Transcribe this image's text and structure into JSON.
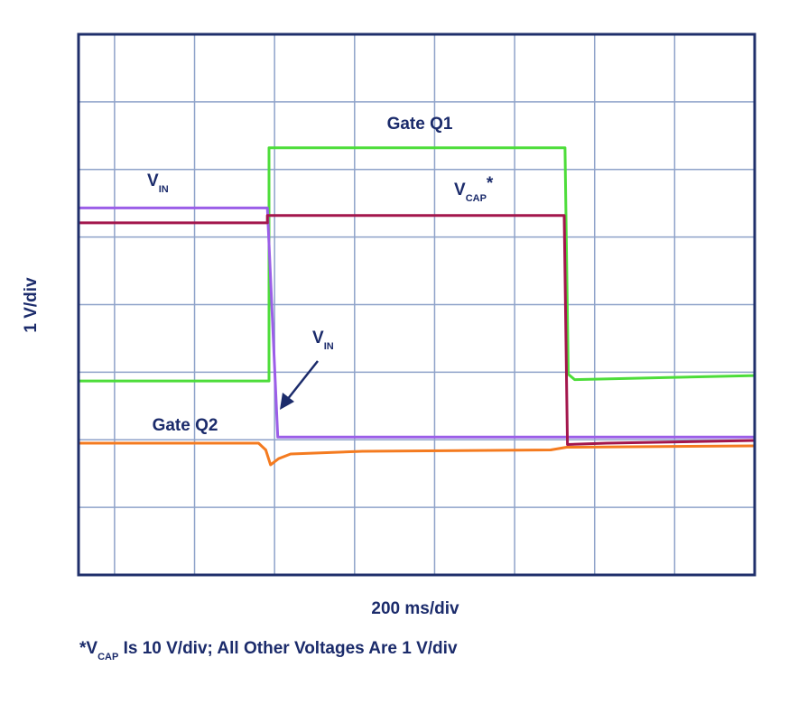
{
  "chart_data": {
    "type": "line",
    "y_label": "1 V/div",
    "x_label": "200 ms/div",
    "xlim": [
      0,
      8.45
    ],
    "xticks": [
      0.45,
      1.45,
      2.45,
      3.45,
      4.45,
      5.45,
      6.45,
      7.45
    ],
    "ylim": [
      0,
      8
    ],
    "yticks": [
      1,
      2,
      3,
      4,
      5,
      6,
      7
    ],
    "grid": true,
    "series": [
      {
        "color": "#4ddd3a",
        "x": [
          0,
          2.38,
          2.38,
          6.08,
          6.12,
          6.2,
          8.45
        ],
        "values": [
          2.87,
          2.87,
          6.32,
          6.32,
          2.97,
          2.89,
          2.95
        ]
      },
      {
        "color": "#9b5ee8",
        "x": [
          0,
          2.36,
          2.49,
          8.45
        ],
        "values": [
          5.43,
          5.43,
          2.04,
          2.04
        ]
      },
      {
        "color": "#a3164c",
        "x": [
          0,
          2.36,
          2.36,
          6.07,
          6.11,
          6.6,
          8.45
        ],
        "values": [
          5.21,
          5.21,
          5.32,
          5.32,
          1.93,
          1.95,
          1.99
        ]
      },
      {
        "color": "#f47b20",
        "x": [
          0,
          2.25,
          2.34,
          2.4,
          2.5,
          2.65,
          3.55,
          5.9,
          6.1,
          8.45
        ],
        "values": [
          1.95,
          1.95,
          1.85,
          1.63,
          1.72,
          1.79,
          1.83,
          1.85,
          1.89,
          1.91
        ]
      }
    ],
    "annotations": [
      {
        "text": "Gate Q1"
      },
      {
        "text": "V",
        "sub": "IN"
      },
      {
        "text": "V",
        "sub": "CAP",
        "suffix": "*"
      },
      {
        "text": "V",
        "sub": "IN"
      },
      {
        "text": "Gate Q2"
      }
    ],
    "footnote": {
      "text": "*V",
      "sub": "CAP",
      "suffix": " Is 10 V/div; All Other Voltages Are 1 V/div"
    }
  }
}
